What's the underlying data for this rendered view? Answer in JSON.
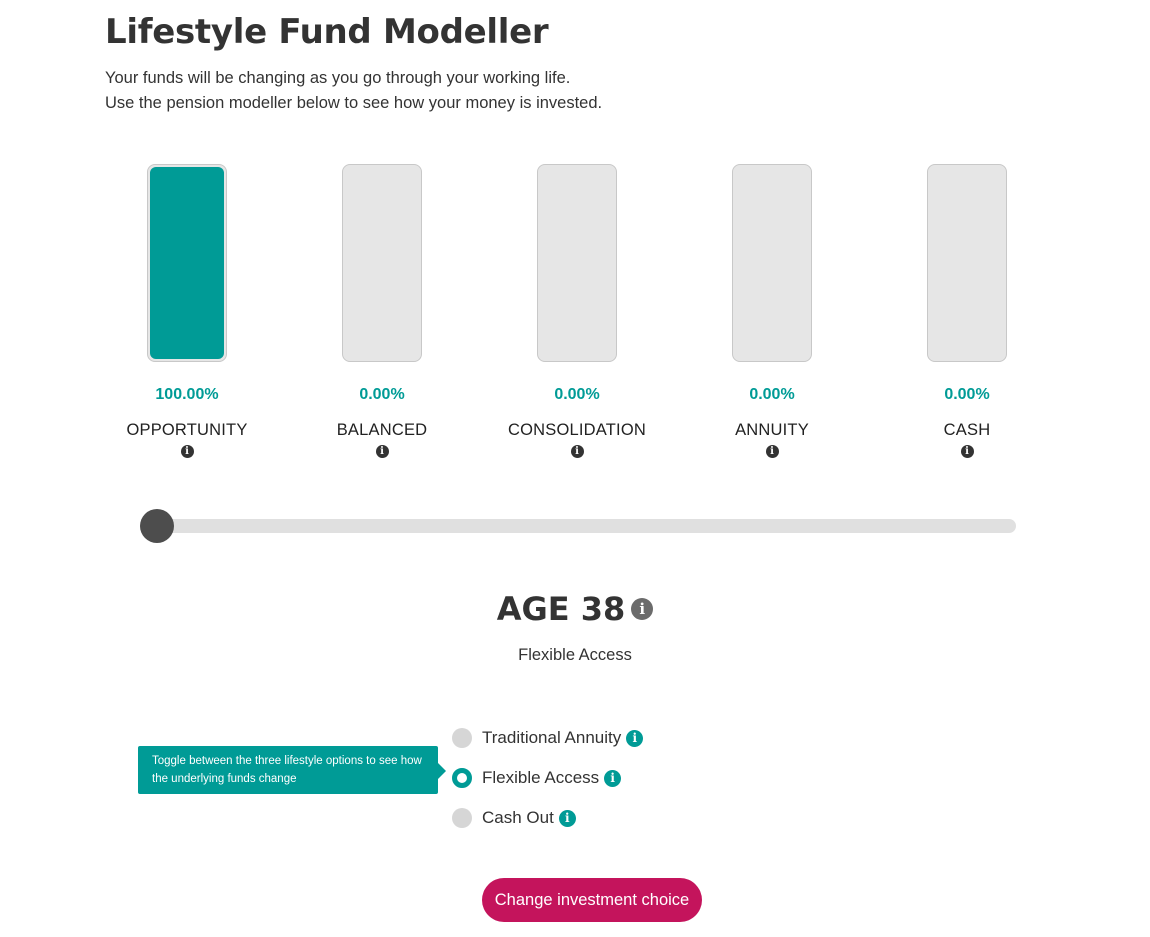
{
  "page": {
    "title": "Lifestyle Fund Modeller",
    "intro_line1": "Your funds will be changing as you go through your working life.",
    "intro_line2": "Use the pension modeller below to see how your money is invested."
  },
  "funds": [
    {
      "name": "OPPORTUNITY",
      "percent": "100.00%",
      "fill_fraction": 1.0
    },
    {
      "name": "BALANCED",
      "percent": "0.00%",
      "fill_fraction": 0.0
    },
    {
      "name": "CONSOLIDATION",
      "percent": "0.00%",
      "fill_fraction": 0.0
    },
    {
      "name": "ANNUITY",
      "percent": "0.00%",
      "fill_fraction": 0.0
    },
    {
      "name": "CASH",
      "percent": "0.00%",
      "fill_fraction": 0.0
    }
  ],
  "slider": {
    "value_fraction": 0.0
  },
  "age": {
    "title": "AGE 38",
    "subtitle": "Flexible Access"
  },
  "options": [
    {
      "label": "Traditional Annuity",
      "selected": false
    },
    {
      "label": "Flexible Access",
      "selected": true
    },
    {
      "label": "Cash Out",
      "selected": false
    }
  ],
  "tooltip": {
    "text": "Toggle between the three lifestyle options to see how the underlying funds change"
  },
  "cta": {
    "label": "Change investment choice"
  },
  "icons": {
    "info": "info-icon",
    "glyph": "i"
  },
  "colors": {
    "accent": "#009b96",
    "cta": "#c4145c",
    "thumb": "#4d4d4d"
  }
}
